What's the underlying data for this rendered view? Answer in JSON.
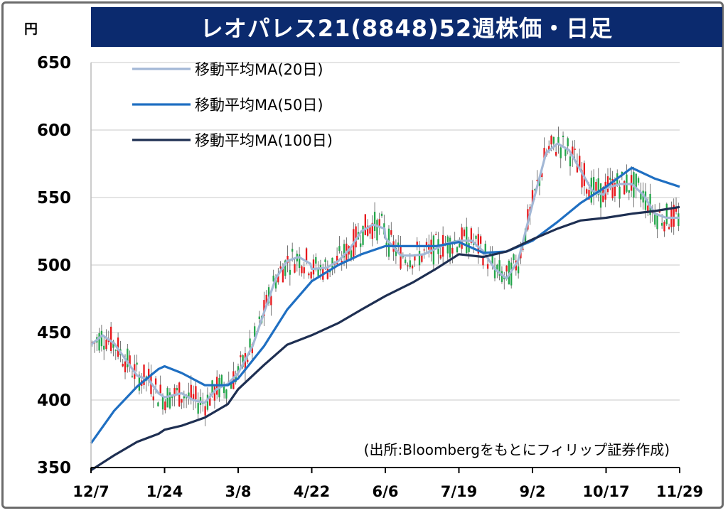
{
  "title": "レオパレス21(8848)52週株価・日足",
  "unit_label": "円",
  "source_note": "(出所:Bloombergをもとにフィリップ証券作成)",
  "chart_data": {
    "type": "line",
    "title": "レオパレス21(8848)52週株価・日足",
    "ylabel": "円",
    "ylim": [
      350,
      650
    ],
    "yticks": [
      650,
      600,
      550,
      500,
      450,
      400,
      350
    ],
    "x_tick_labels": [
      "12/7",
      "1/24",
      "3/8",
      "4/22",
      "6/6",
      "7/19",
      "9/2",
      "10/17",
      "11/29"
    ],
    "grid": true,
    "legend_position": "top-left",
    "series": [
      {
        "name": "移動平均MA(20日)",
        "color": "#a3b8d6",
        "x": [
          "12/7",
          "12/14",
          "12/21",
          "12/28",
          "1/4",
          "1/11",
          "1/17",
          "1/24",
          "1/31",
          "2/7",
          "2/14",
          "2/21",
          "2/28",
          "3/8",
          "3/15",
          "3/22",
          "3/29",
          "4/5",
          "4/12",
          "4/19",
          "4/22",
          "4/29",
          "5/6",
          "5/13",
          "5/20",
          "5/27",
          "6/3",
          "6/6",
          "6/13",
          "6/20",
          "6/27",
          "7/4",
          "7/11",
          "7/19",
          "7/26",
          "8/2",
          "8/9",
          "8/16",
          "8/23",
          "9/2",
          "9/9",
          "9/16",
          "9/23",
          "9/30",
          "10/7",
          "10/14",
          "10/17",
          "10/24",
          "10/31",
          "11/7",
          "11/14",
          "11/21",
          "11/29"
        ],
        "values": [
          441,
          448,
          442,
          430,
          418,
          415,
          405,
          402,
          405,
          400,
          398,
          408,
          412,
          420,
          440,
          465,
          490,
          503,
          506,
          501,
          497,
          498,
          503,
          512,
          525,
          530,
          527,
          520,
          507,
          507,
          508,
          512,
          516,
          518,
          518,
          510,
          497,
          490,
          503,
          545,
          583,
          590,
          585,
          570,
          555,
          552,
          557,
          560,
          560,
          552,
          538,
          535,
          535
        ]
      },
      {
        "name": "移動平均MA(50日)",
        "color": "#1f6fc2",
        "x": [
          "12/7",
          "12/21",
          "1/4",
          "1/17",
          "1/24",
          "1/31",
          "2/14",
          "2/28",
          "3/8",
          "3/22",
          "4/5",
          "4/22",
          "5/6",
          "5/20",
          "6/6",
          "6/20",
          "7/4",
          "7/19",
          "8/2",
          "8/16",
          "9/2",
          "9/16",
          "9/30",
          "10/17",
          "10/31",
          "11/14",
          "11/29"
        ],
        "values": [
          368,
          392,
          410,
          423,
          425,
          420,
          411,
          411,
          416,
          440,
          467,
          488,
          500,
          508,
          514,
          514,
          514,
          517,
          509,
          510,
          518,
          532,
          546,
          558,
          572,
          564,
          558
        ]
      },
      {
        "name": "移動平均MA(100日)",
        "color": "#1e2f52",
        "x": [
          "12/7",
          "12/21",
          "1/4",
          "1/17",
          "1/24",
          "1/31",
          "2/14",
          "2/28",
          "3/8",
          "3/22",
          "4/5",
          "4/22",
          "5/6",
          "5/20",
          "6/6",
          "6/20",
          "7/4",
          "7/19",
          "8/2",
          "8/16",
          "9/2",
          "9/16",
          "9/30",
          "10/17",
          "10/31",
          "11/14",
          "11/29"
        ],
        "values": [
          348,
          359,
          369,
          375,
          378,
          381,
          387,
          397,
          408,
          426,
          441,
          448,
          457,
          467,
          477,
          487,
          497,
          508,
          506,
          510,
          519,
          527,
          533,
          535,
          538,
          540,
          543
        ]
      }
    ]
  },
  "colors": {
    "title_bg": "#0b2a6e",
    "candle_up": "#e8191d",
    "candle_down": "#22a64a",
    "grid": "#d4d4d4"
  }
}
